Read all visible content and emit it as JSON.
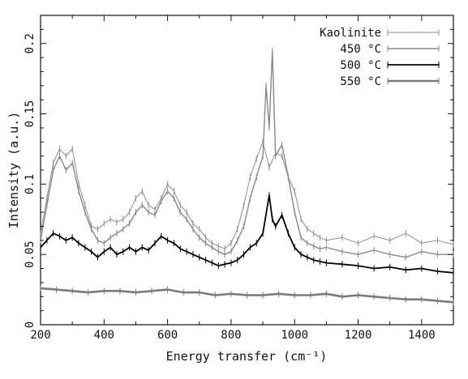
{
  "chart_data": {
    "type": "line",
    "xlabel": "Energy transfer (cm⁻¹)",
    "ylabel": "Intensity (a.u.)",
    "xlim": [
      200,
      1500
    ],
    "ylim": [
      0,
      0.22
    ],
    "x_ticks": [
      200,
      400,
      600,
      800,
      1000,
      1200,
      1400
    ],
    "y_ticks": [
      0,
      0.05,
      0.1,
      0.15,
      0.2
    ],
    "x_tick_labels": [
      "200",
      "400",
      "600",
      "800",
      "1000",
      "1200",
      "1400"
    ],
    "y_tick_labels": [
      "0",
      "0.05",
      "0.1",
      "0.15",
      "0.2"
    ],
    "grid": false,
    "legend_position": "top-right",
    "series": [
      {
        "name": "Kaolinite",
        "color": "#8c8c8c",
        "width": 1,
        "error_bars": true,
        "x": [
          200,
          220,
          240,
          260,
          280,
          300,
          320,
          340,
          360,
          380,
          400,
          420,
          440,
          460,
          480,
          500,
          520,
          540,
          560,
          580,
          600,
          620,
          640,
          660,
          680,
          700,
          720,
          740,
          760,
          780,
          800,
          820,
          840,
          860,
          880,
          900,
          920,
          940,
          960,
          980,
          1000,
          1020,
          1040,
          1060,
          1080,
          1100,
          1150,
          1200,
          1250,
          1300,
          1350,
          1400,
          1450,
          1500
        ],
        "y": [
          0.065,
          0.09,
          0.115,
          0.125,
          0.12,
          0.125,
          0.1,
          0.085,
          0.07,
          0.068,
          0.072,
          0.075,
          0.073,
          0.075,
          0.08,
          0.09,
          0.095,
          0.085,
          0.082,
          0.09,
          0.1,
          0.095,
          0.085,
          0.08,
          0.072,
          0.068,
          0.062,
          0.058,
          0.056,
          0.054,
          0.058,
          0.068,
          0.085,
          0.105,
          0.118,
          0.13,
          0.112,
          0.122,
          0.12,
          0.105,
          0.095,
          0.075,
          0.068,
          0.065,
          0.062,
          0.06,
          0.062,
          0.058,
          0.063,
          0.06,
          0.065,
          0.058,
          0.06,
          0.057
        ]
      },
      {
        "name": "450 °C",
        "color": "#888888",
        "width": 1.4,
        "error_bars": true,
        "x": [
          200,
          220,
          240,
          260,
          280,
          300,
          320,
          340,
          360,
          380,
          400,
          420,
          440,
          460,
          480,
          500,
          520,
          540,
          560,
          580,
          600,
          620,
          640,
          660,
          680,
          700,
          720,
          740,
          760,
          780,
          800,
          820,
          840,
          860,
          880,
          900,
          910,
          920,
          930,
          940,
          960,
          980,
          1000,
          1020,
          1040,
          1060,
          1080,
          1100,
          1150,
          1200,
          1250,
          1300,
          1350,
          1400,
          1450,
          1500
        ],
        "y": [
          0.06,
          0.085,
          0.11,
          0.12,
          0.11,
          0.115,
          0.095,
          0.08,
          0.068,
          0.06,
          0.058,
          0.062,
          0.065,
          0.068,
          0.072,
          0.08,
          0.085,
          0.08,
          0.078,
          0.088,
          0.095,
          0.09,
          0.08,
          0.075,
          0.068,
          0.062,
          0.058,
          0.055,
          0.052,
          0.05,
          0.052,
          0.06,
          0.07,
          0.09,
          0.105,
          0.12,
          0.17,
          0.14,
          0.195,
          0.12,
          0.128,
          0.105,
          0.08,
          0.062,
          0.058,
          0.056,
          0.054,
          0.055,
          0.052,
          0.05,
          0.053,
          0.05,
          0.048,
          0.052,
          0.05,
          0.05
        ]
      },
      {
        "name": "500 °C",
        "color": "#000000",
        "width": 1.8,
        "error_bars": true,
        "x": [
          200,
          220,
          240,
          260,
          280,
          300,
          320,
          340,
          360,
          380,
          400,
          420,
          440,
          460,
          480,
          500,
          520,
          540,
          560,
          580,
          600,
          620,
          640,
          660,
          680,
          700,
          720,
          740,
          760,
          780,
          800,
          820,
          840,
          860,
          880,
          900,
          920,
          930,
          940,
          960,
          980,
          1000,
          1020,
          1040,
          1060,
          1080,
          1100,
          1150,
          1200,
          1250,
          1300,
          1350,
          1400,
          1450,
          1500
        ],
        "y": [
          0.055,
          0.06,
          0.065,
          0.063,
          0.06,
          0.062,
          0.058,
          0.055,
          0.052,
          0.048,
          0.052,
          0.055,
          0.05,
          0.052,
          0.055,
          0.052,
          0.055,
          0.053,
          0.058,
          0.063,
          0.06,
          0.058,
          0.054,
          0.052,
          0.05,
          0.048,
          0.046,
          0.044,
          0.042,
          0.043,
          0.044,
          0.046,
          0.05,
          0.055,
          0.058,
          0.065,
          0.092,
          0.075,
          0.07,
          0.078,
          0.065,
          0.055,
          0.05,
          0.048,
          0.046,
          0.045,
          0.044,
          0.043,
          0.042,
          0.04,
          0.041,
          0.039,
          0.04,
          0.038,
          0.037
        ]
      },
      {
        "name": "550 °C",
        "color": "#7a7a7a",
        "width": 2.6,
        "error_bars": true,
        "x": [
          200,
          250,
          300,
          350,
          400,
          450,
          500,
          550,
          600,
          650,
          700,
          750,
          800,
          850,
          900,
          950,
          1000,
          1050,
          1100,
          1150,
          1200,
          1250,
          1300,
          1350,
          1400,
          1450,
          1500
        ],
        "y": [
          0.026,
          0.025,
          0.024,
          0.023,
          0.024,
          0.024,
          0.023,
          0.024,
          0.025,
          0.023,
          0.023,
          0.021,
          0.022,
          0.021,
          0.021,
          0.022,
          0.021,
          0.021,
          0.022,
          0.02,
          0.021,
          0.02,
          0.019,
          0.018,
          0.018,
          0.017,
          0.016
        ]
      }
    ]
  }
}
